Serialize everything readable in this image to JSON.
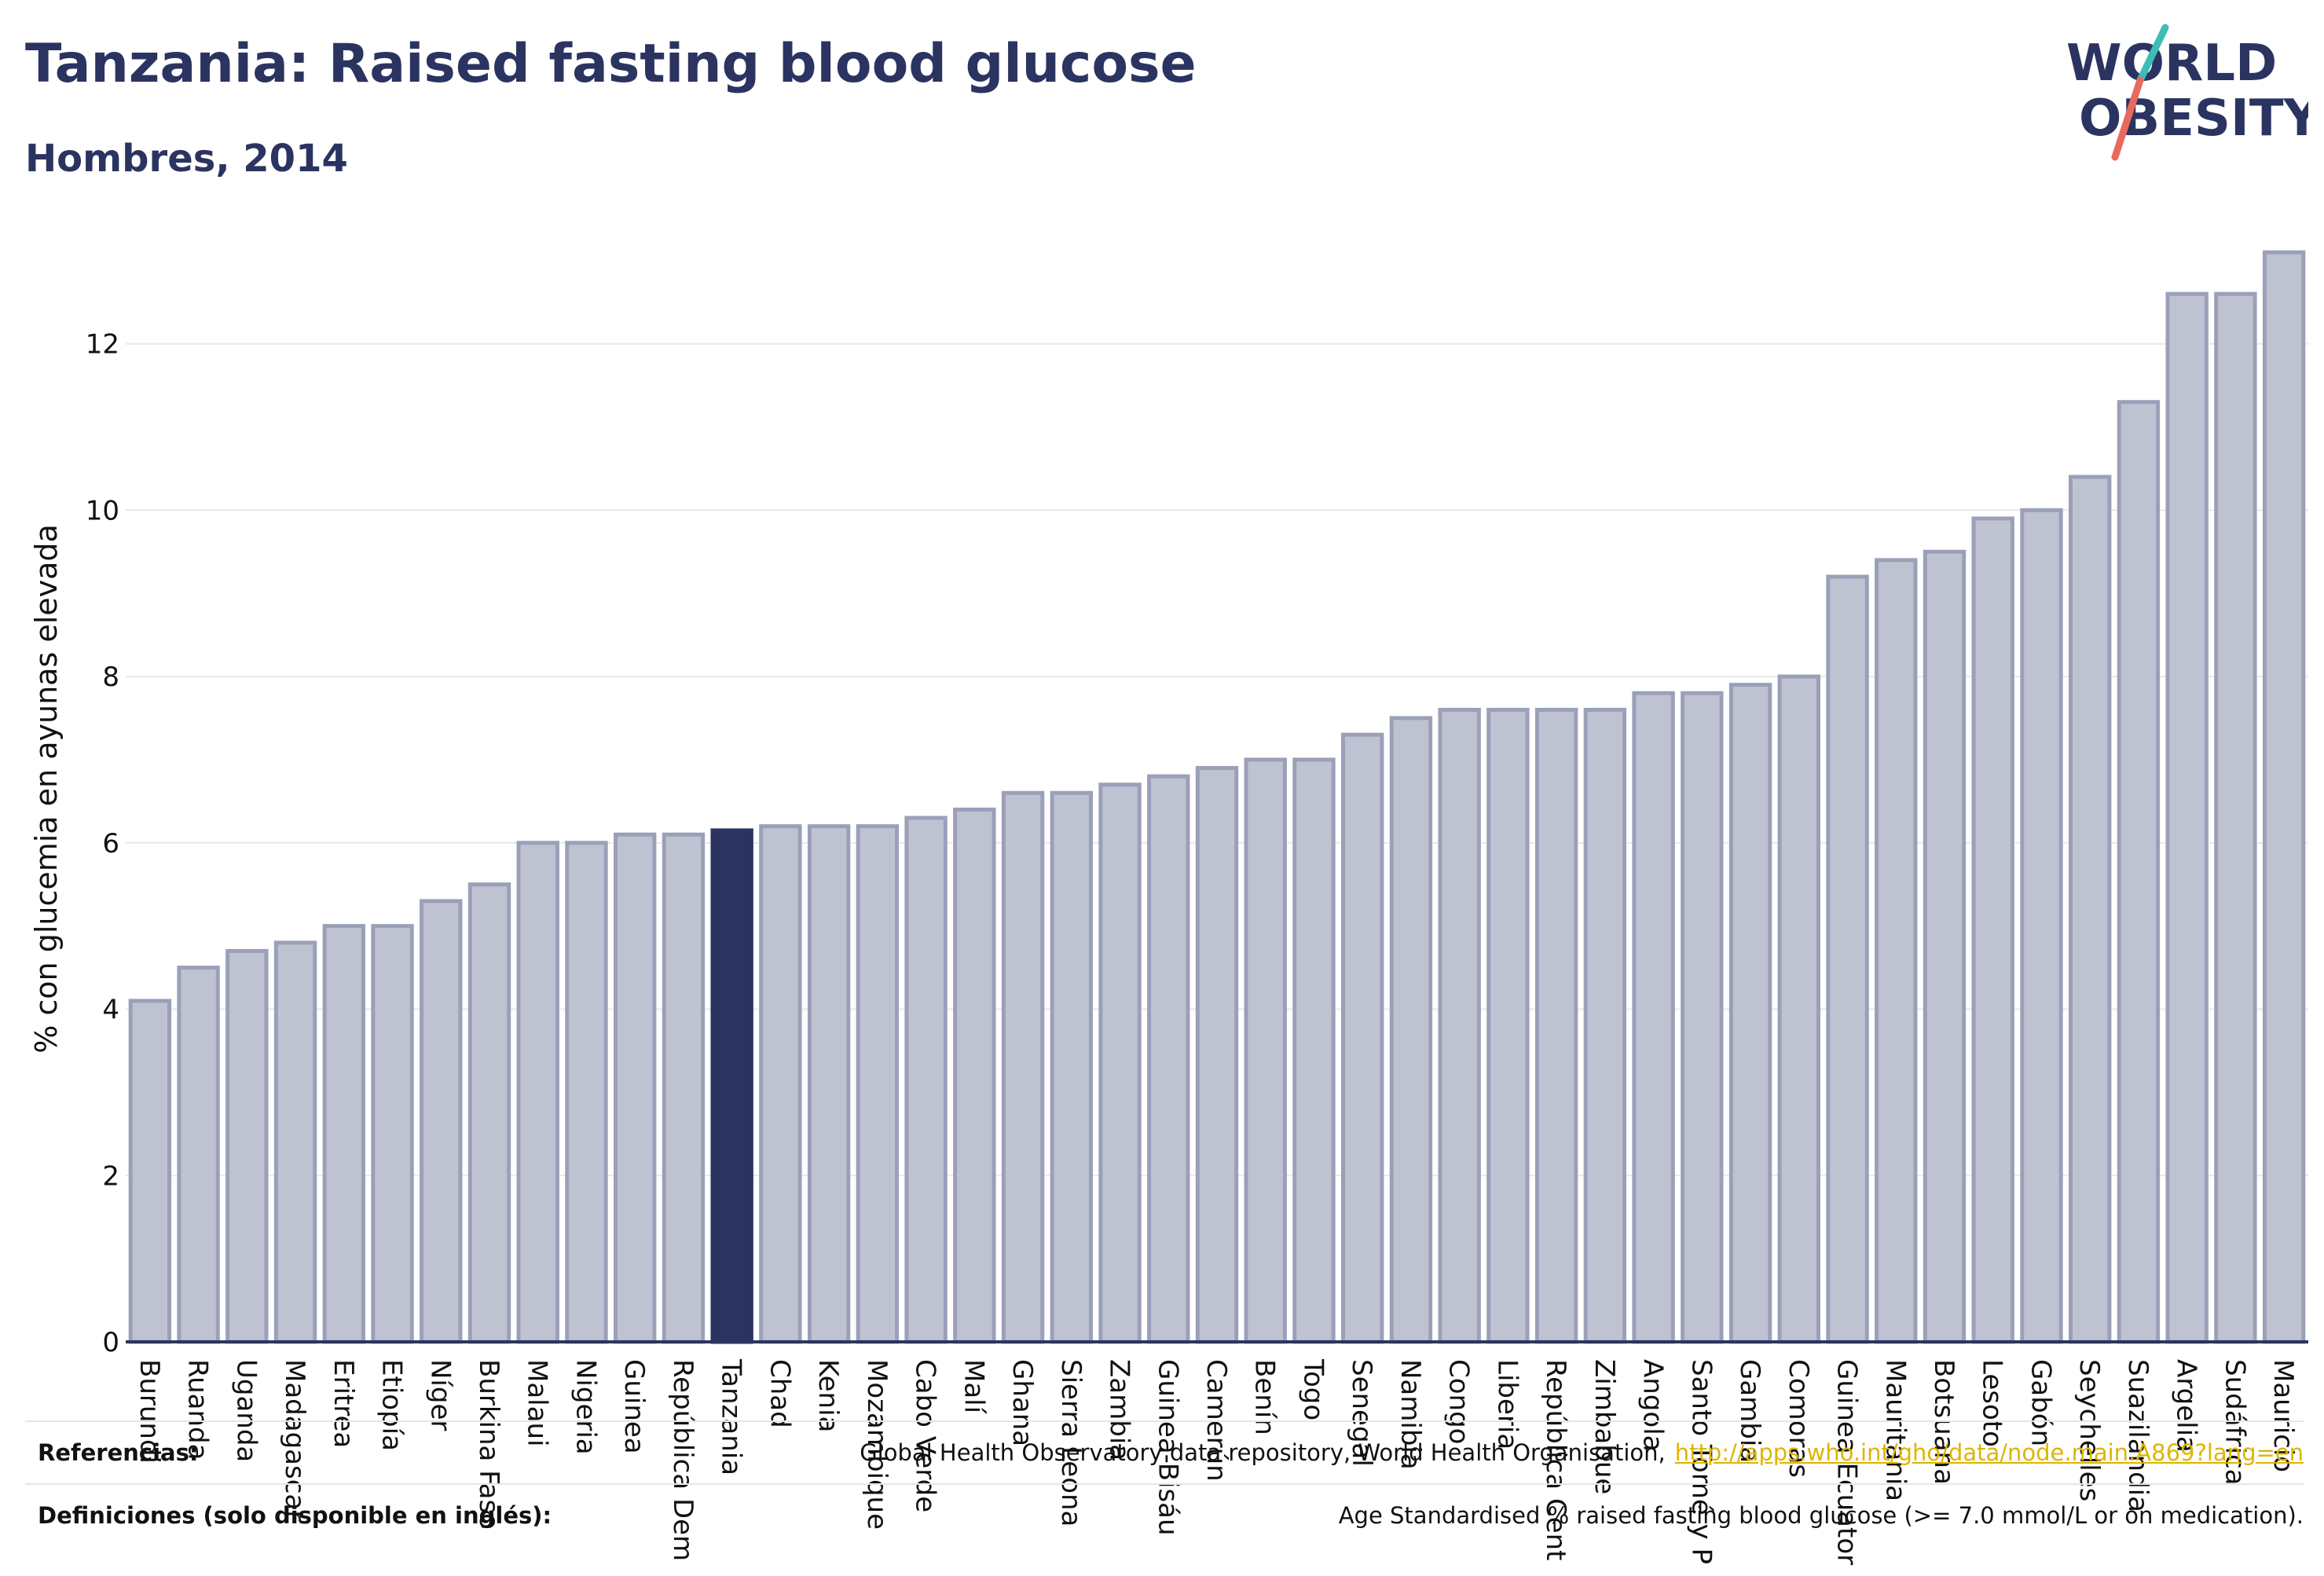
{
  "header": {
    "title": "Tanzania: Raised fasting blood glucose",
    "subtitle": "Hombres, 2014"
  },
  "logo": {
    "text_line1": "WORLD",
    "text_line2": "OBESITY",
    "colors": {
      "text": "#2b3460",
      "slash_top": "#3dbdb5",
      "slash_bottom": "#e86a5e"
    }
  },
  "colors": {
    "bar_default": "#bfc3d1",
    "bar_default_stroke": "#9aa0b8",
    "bar_highlight": "#2b3460",
    "axis": "#2b3460",
    "grid": "#e8e8e8"
  },
  "chart_data": {
    "type": "bar",
    "title": "Tanzania: Raised fasting blood glucose",
    "subtitle": "Hombres, 2014",
    "xlabel": "",
    "ylabel": "% con glucemia en ayunas elevada",
    "ylim": [
      0,
      13.3
    ],
    "yticks": [
      0,
      2,
      4,
      6,
      8,
      10,
      12
    ],
    "grid": true,
    "highlight": "Tanzania",
    "categories": [
      "Burundi",
      "Ruanda",
      "Uganda",
      "Madagascar",
      "Eritrea",
      "Etiopía",
      "Níger",
      "Burkina Faso",
      "Malaui",
      "Nigeria",
      "Guinea",
      "República Dem",
      "Tanzania",
      "Chad",
      "Kenia",
      "Mozambique",
      "Cabo Verde",
      "Malí",
      "Ghana",
      "Sierra Leona",
      "Zambia",
      "Guinea-Bisáu",
      "Camerún",
      "Benín",
      "Togo",
      "Senegal",
      "Namibia",
      "Congo",
      "Liberia",
      "República Cent",
      "Zimbabue",
      "Angola",
      "Santo Tomé y P",
      "Gambia",
      "Comoras",
      "Guinea Ecuator",
      "Mauritania",
      "Botsuana",
      "Lesoto",
      "Gabón",
      "Seychelles",
      "Suazilandia",
      "Argelia",
      "Sudáfrica",
      "Mauricio"
    ],
    "values": [
      4.1,
      4.5,
      4.7,
      4.8,
      5.0,
      5.0,
      5.3,
      5.5,
      6.0,
      6.0,
      6.1,
      6.1,
      6.15,
      6.2,
      6.2,
      6.2,
      6.3,
      6.4,
      6.6,
      6.6,
      6.7,
      6.8,
      6.9,
      7.0,
      7.0,
      7.3,
      7.5,
      7.6,
      7.6,
      7.6,
      7.6,
      7.8,
      7.8,
      7.9,
      8.0,
      9.2,
      9.4,
      9.5,
      9.9,
      10.0,
      10.4,
      11.3,
      12.6,
      12.6,
      13.1
    ]
  },
  "footer": {
    "references_label": "Referencias:",
    "references_text": "Global Health Observatory data repository, World Health Organisation,",
    "references_link": "http://apps.who.int/gho/data/node.main.A869?lang=en",
    "definitions_label": "Definiciones (solo disponible en inglés):",
    "definitions_text": "Age Standardised % raised fasting blood glucose (>= 7.0 mmol/L or on medication)."
  }
}
